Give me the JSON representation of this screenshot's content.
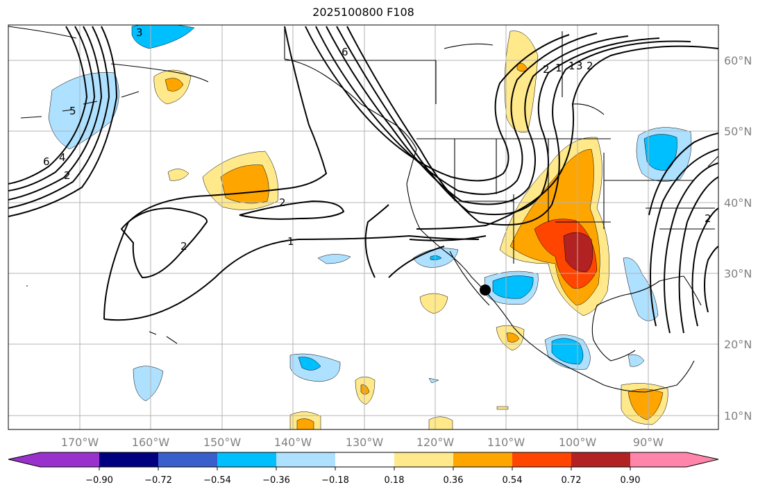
{
  "title": "2025100800 F108",
  "colors": {
    "neg090": "#9932cc",
    "neg072": "#000080",
    "neg054": "#3a5fcd",
    "neg036": "#00bfff",
    "neg018": "#aee0ff",
    "zero": "#ffffff",
    "pos018": "#ffe98a",
    "pos036": "#ffa500",
    "pos054": "#ff4500",
    "pos072": "#b22222",
    "pos090": "#ff86aa",
    "coast": "#000000",
    "grid": "#b3b3b3",
    "contour": "#000000"
  },
  "axes": {
    "lon_labels": [
      "170°W",
      "160°W",
      "150°W",
      "140°W",
      "130°W",
      "120°W",
      "110°W",
      "100°W",
      "90°W"
    ],
    "lat_labels": [
      "60°N",
      "50°N",
      "40°N",
      "30°N",
      "20°N",
      "10°N"
    ]
  },
  "colorbar": {
    "ticks": [
      "−0.90",
      "−0.72",
      "−0.54",
      "−0.36",
      "−0.18",
      "0.18",
      "0.36",
      "0.54",
      "0.72",
      "0.90"
    ]
  },
  "contour_labels": [
    "3",
    "6",
    "6",
    "2",
    "4",
    "5",
    "1",
    "2",
    "2",
    "1",
    "2",
    "1",
    "3",
    "2",
    "2"
  ],
  "marker": "station-point"
}
